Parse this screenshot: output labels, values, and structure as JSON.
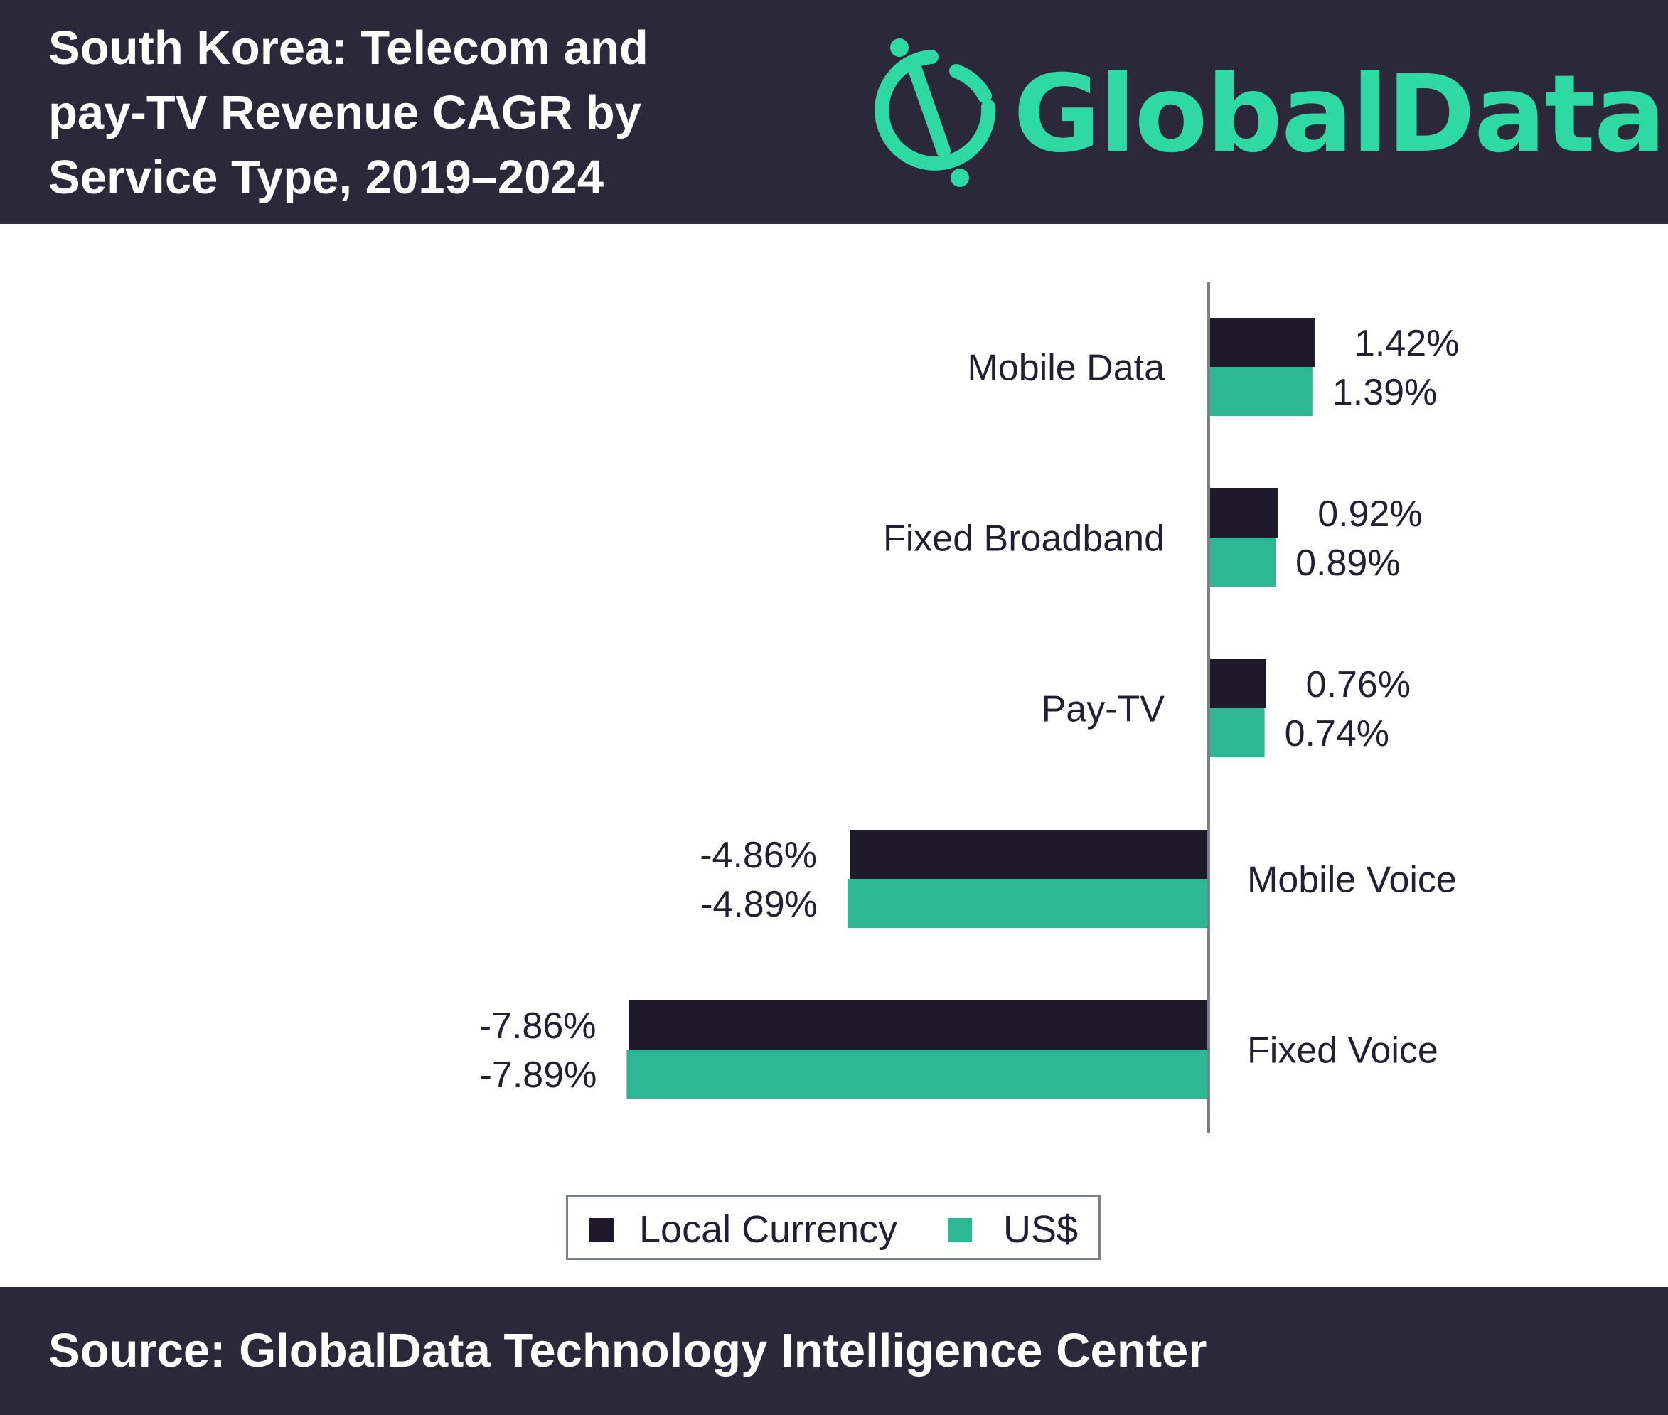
{
  "header": {
    "title_lines": [
      "South Korea: Telecom and",
      "pay-TV Revenue CAGR by",
      "Service Type, 2019–2024"
    ],
    "logo_text": "GlobalData."
  },
  "footer": {
    "source": "Source: GlobalData Technology Intelligence Center"
  },
  "colors": {
    "background_dark": "#2b2839",
    "local_currency": "#1e1a2b",
    "usd": "#2db893",
    "logo": "#2fd9a4",
    "axis": "#7a7f8a"
  },
  "chart_data": {
    "type": "bar",
    "orientation": "horizontal",
    "title": "South Korea: Telecom and pay-TV Revenue CAGR by Service Type, 2019–2024",
    "categories": [
      "Mobile Data",
      "Fixed Broadband",
      "Pay-TV",
      "Mobile Voice",
      "Fixed Voice"
    ],
    "series": [
      {
        "name": "Local Currency",
        "values": [
          1.42,
          0.92,
          0.76,
          -4.86,
          -7.86
        ],
        "labels": [
          "1.42%",
          "0.92%",
          "0.76%",
          "-4.86%",
          "-7.86%"
        ]
      },
      {
        "name": "US$",
        "values": [
          1.39,
          0.89,
          0.74,
          -4.89,
          -7.89
        ],
        "labels": [
          "1.39%",
          "0.89%",
          "0.74%",
          "-4.89%",
          "-7.89%"
        ]
      }
    ],
    "xlim": [
      -7.89,
      1.42
    ],
    "xlabel": "",
    "ylabel": "",
    "grid": false,
    "legend": "bottom-center"
  }
}
